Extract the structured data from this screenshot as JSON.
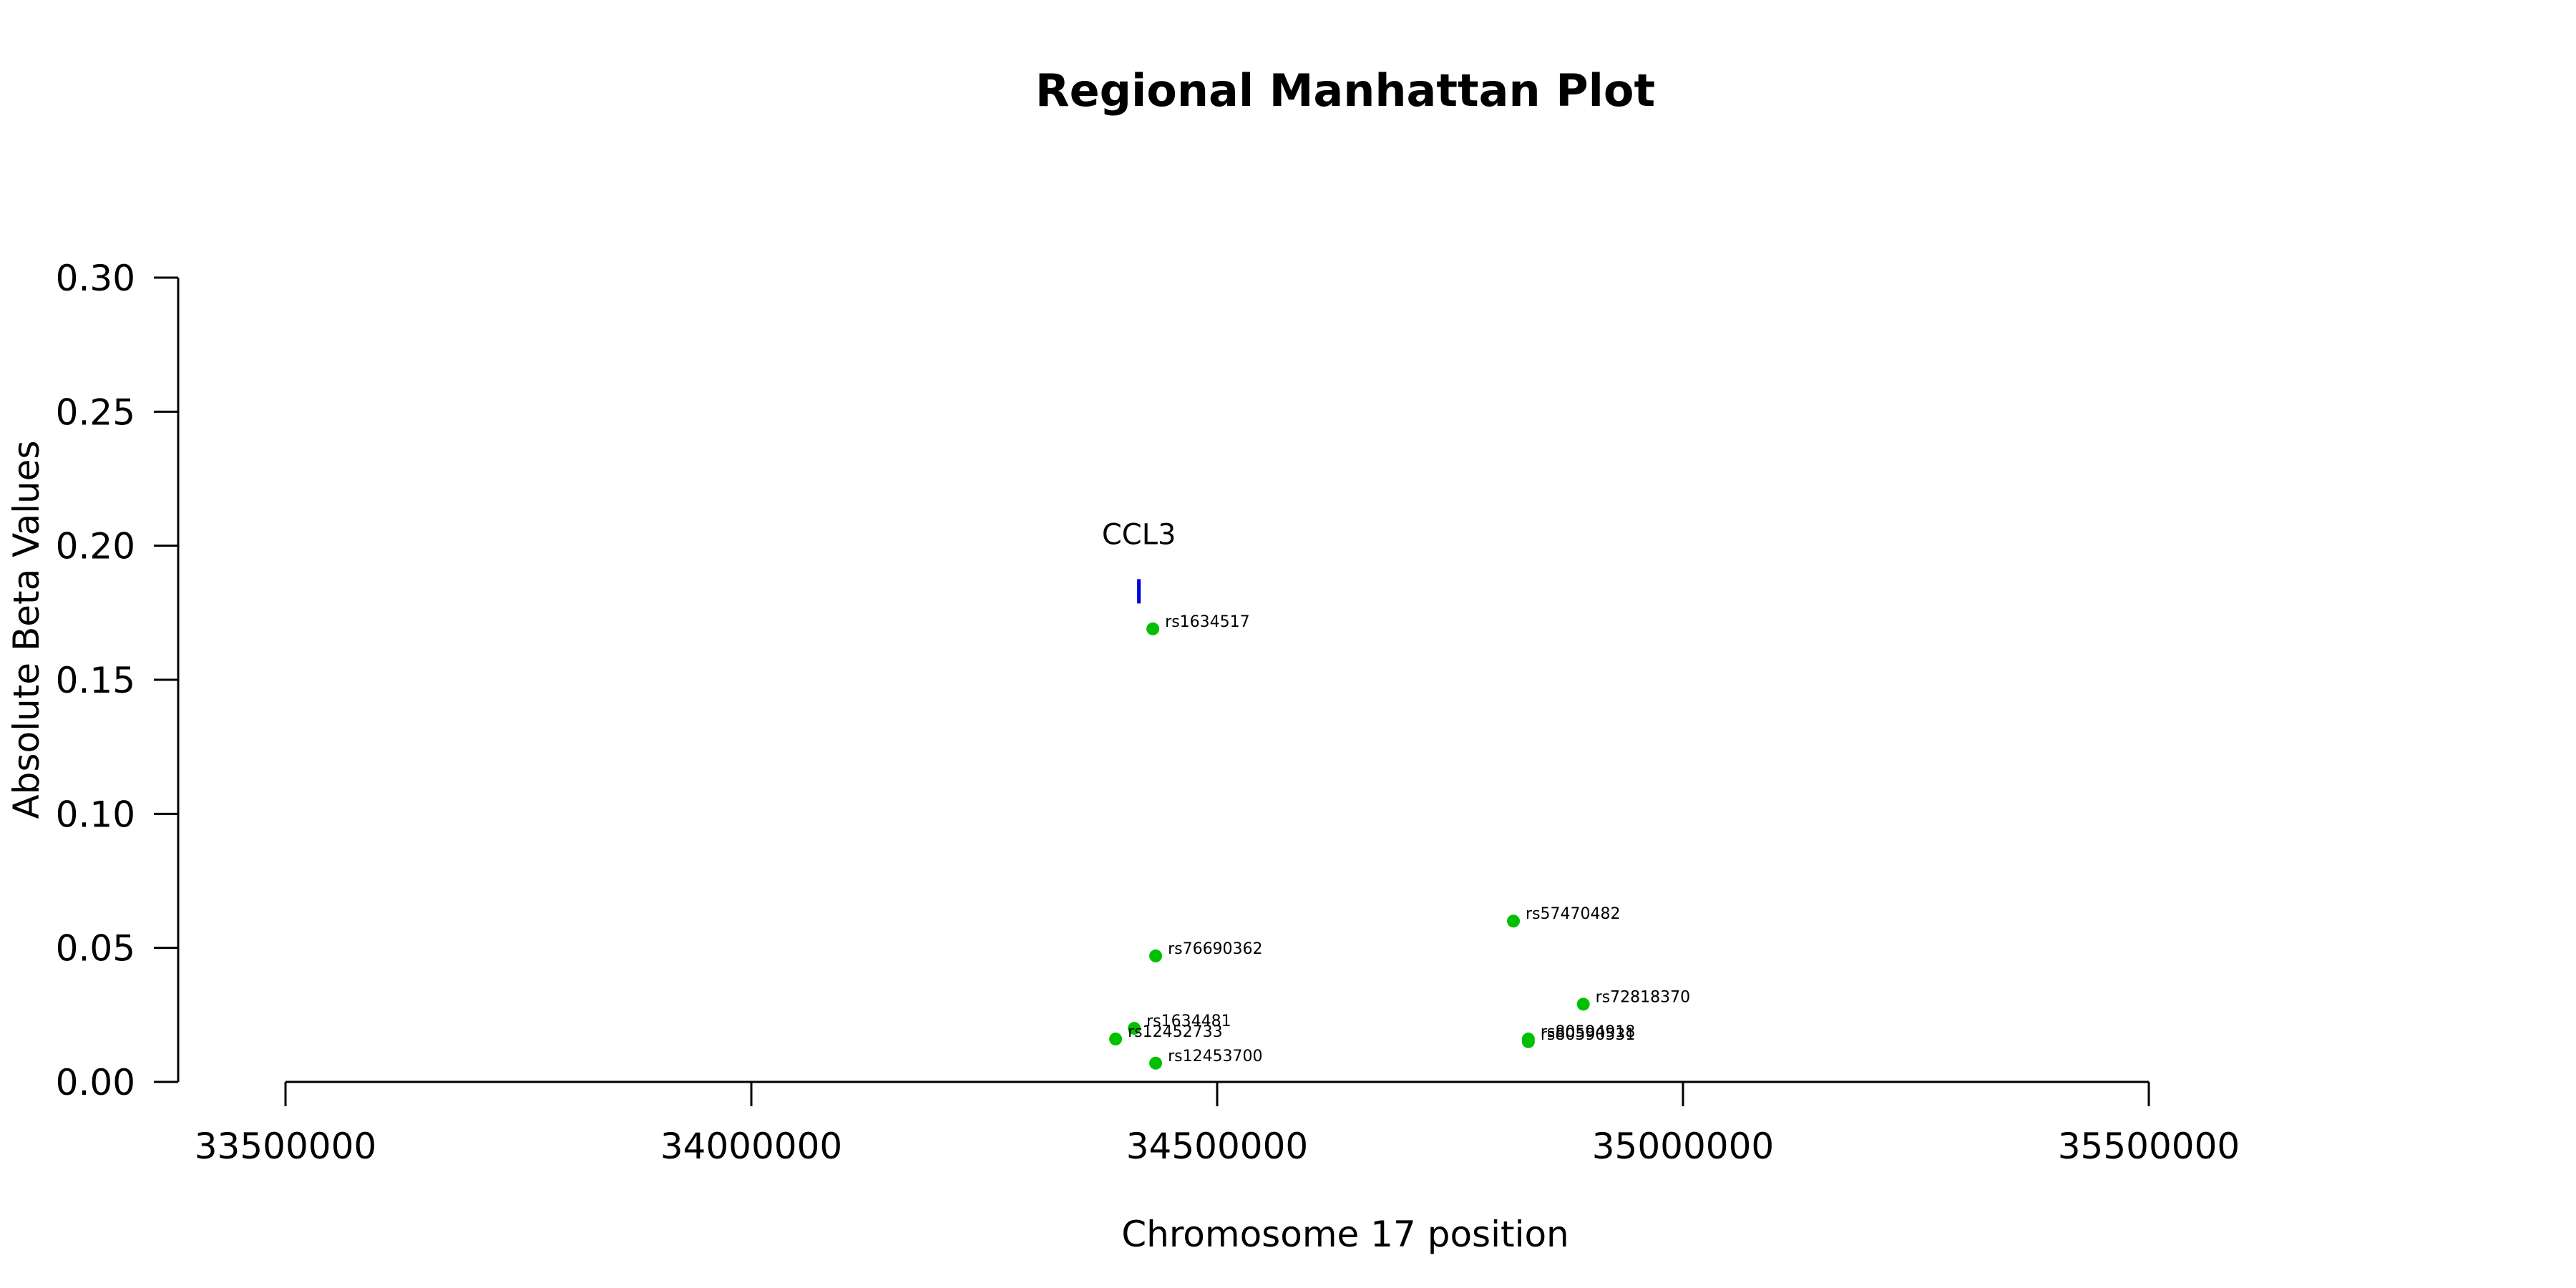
{
  "chart_data": {
    "type": "scatter",
    "title": "Regional Manhattan Plot",
    "xlabel": "Chromosome 17 position",
    "ylabel": "Absolute Beta Values",
    "xlim": [
      33500000,
      35500000
    ],
    "ylim": [
      0,
      0.3
    ],
    "x_ticks": [
      33500000,
      34000000,
      34500000,
      35000000,
      35500000
    ],
    "x_tick_labels": [
      "33500000",
      "34000000",
      "34500000",
      "35000000",
      "35500000"
    ],
    "y_ticks": [
      0,
      0.05,
      0.1,
      0.15,
      0.2,
      0.25,
      0.3
    ],
    "y_tick_labels": [
      "0.00",
      "0.05",
      "0.10",
      "0.15",
      "0.20",
      "0.25",
      "0.30"
    ],
    "grid": false,
    "point_color": "#00c000",
    "gene_color": "#0000dd",
    "genes": [
      {
        "name": "CCL3",
        "start": 34415000,
        "end": 34417000,
        "y": 0.183
      }
    ],
    "points": [
      {
        "snp": "rs1634517",
        "x": 34431000,
        "y": 0.169
      },
      {
        "snp": "rs57470482",
        "x": 34818000,
        "y": 0.06
      },
      {
        "snp": "rs76690362",
        "x": 34434000,
        "y": 0.047
      },
      {
        "snp": "rs72818370",
        "x": 34893000,
        "y": 0.029
      },
      {
        "snp": "rs1634481",
        "x": 34411000,
        "y": 0.02
      },
      {
        "snp": "rs12452733",
        "x": 34391000,
        "y": 0.016
      },
      {
        "snp": "rs12453700",
        "x": 34434000,
        "y": 0.007
      },
      {
        "snp": "rs80594918",
        "x": 34834000,
        "y": 0.016
      },
      {
        "snp": "rs80590531",
        "x": 34834000,
        "y": 0.015
      }
    ]
  }
}
